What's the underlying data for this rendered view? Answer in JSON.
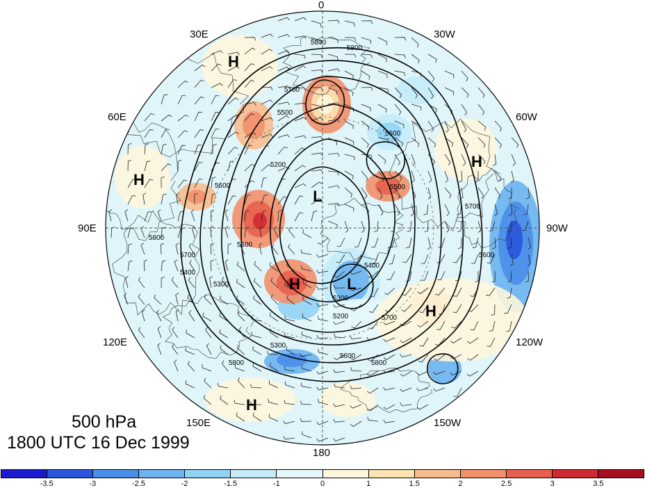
{
  "title": {
    "level": "500 hPa",
    "datetime": "1800 UTC 16 Dec 1999"
  },
  "longitude_labels": [
    {
      "id": "lon-0",
      "text": "0"
    },
    {
      "id": "lon-30w",
      "text": "30W"
    },
    {
      "id": "lon-60w",
      "text": "60W"
    },
    {
      "id": "lon-90w",
      "text": "90W"
    },
    {
      "id": "lon-120w",
      "text": "120W"
    },
    {
      "id": "lon-150w",
      "text": "150W"
    },
    {
      "id": "lon-180",
      "text": "180"
    },
    {
      "id": "lon-150e",
      "text": "150E"
    },
    {
      "id": "lon-120e",
      "text": "120E"
    },
    {
      "id": "lon-90e",
      "text": "90E"
    },
    {
      "id": "lon-60e",
      "text": "60E"
    },
    {
      "id": "lon-30e",
      "text": "30E"
    }
  ],
  "pressure_centers": [
    {
      "id": "H1",
      "label": "H"
    },
    {
      "id": "H2",
      "label": "H"
    },
    {
      "id": "H3",
      "label": "H"
    },
    {
      "id": "H4",
      "label": "H"
    },
    {
      "id": "H5",
      "label": "H"
    },
    {
      "id": "H6",
      "label": "H"
    },
    {
      "id": "L1",
      "label": "L"
    },
    {
      "id": "L2",
      "label": "L"
    }
  ],
  "contour_labels": [
    "5800",
    "5800",
    "5700",
    "5600",
    "5500",
    "5400",
    "5300",
    "5200",
    "5600",
    "5800",
    "5700",
    "5600",
    "5500",
    "5300",
    "5400",
    "5200",
    "5300",
    "5800",
    "5700",
    "5800",
    "5500",
    "5700",
    "5600"
  ],
  "colorbar": {
    "colors": [
      "#1c1ad0",
      "#2a55dd",
      "#4a8ee8",
      "#6cb3ef",
      "#92d3f4",
      "#c3ecf8",
      "#e6f8fb",
      "#fdf6dc",
      "#fbe3b2",
      "#f7bc8e",
      "#f2906b",
      "#e8604d",
      "#cf2a31",
      "#a40e1f"
    ],
    "labels": [
      "-3.5",
      "-3",
      "-2.5",
      "-2",
      "-1.5",
      "-1",
      "0",
      "1",
      "1.5",
      "2",
      "2.5",
      "3",
      "3.5"
    ]
  }
}
